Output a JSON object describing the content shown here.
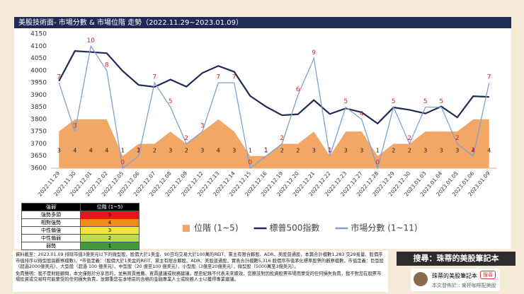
{
  "chart_data": {
    "type": "combo",
    "title": "美股技術面- 市場分數 & 市場位階 走勢（2022.11.29~2023.01.09）",
    "categories": [
      "2022.11.29",
      "2022.11.30",
      "2022.12.01",
      "2022.12.02",
      "2022.12.05",
      "2022.12.06",
      "2022.12.07",
      "2022.12.08",
      "2022.12.09",
      "2022.12.12",
      "2022.12.13",
      "2022.12.14",
      "2022.12.15",
      "2022.12.16",
      "2022.12.19",
      "2022.12.20",
      "2022.12.21",
      "2022.12.22",
      "2022.12.23",
      "2022.12.27",
      "2022.12.28",
      "2022.12.29",
      "2022.12.30",
      "2023.01.03",
      "2023.01.04",
      "2023.01.05",
      "2023.01.06",
      "2023.01.09"
    ],
    "series": [
      {
        "name": "位階 (1~5)",
        "type": "area",
        "axis": "y2",
        "color": "#f2a766",
        "label_color": "#222222",
        "values": [
          3,
          4,
          4,
          4,
          1,
          2,
          2,
          3,
          2,
          3,
          4,
          3,
          1,
          1,
          2,
          2,
          3,
          1,
          3,
          3,
          1,
          2,
          2,
          3,
          3,
          3,
          4,
          4
        ]
      },
      {
        "name": "標普500指數",
        "type": "line",
        "color": "#1f2a55",
        "values": [
          3957,
          4080,
          4076,
          4071,
          3998,
          3941,
          3933,
          3963,
          3934,
          3990,
          4019,
          3995,
          3896,
          3852,
          3817,
          3821,
          3879,
          3822,
          3845,
          3829,
          3783,
          3849,
          3839,
          3824,
          3853,
          3808,
          3895,
          3892
        ]
      },
      {
        "name": "市場分數 (1~11)",
        "type": "line",
        "axis": "y2",
        "color": "#7f9fd3",
        "label_color": "#e02020",
        "values": [
          7,
          3,
          10,
          8,
          0,
          1,
          7,
          5,
          2,
          3,
          7,
          7,
          0,
          1,
          2,
          6,
          9,
          1,
          5,
          4,
          0,
          5,
          2,
          5,
          5,
          2,
          1,
          7
        ]
      }
    ],
    "ylim": [
      3600,
      4150
    ],
    "yticks": [
      3600,
      3650,
      3700,
      3750,
      3800,
      3850,
      3900,
      3950,
      4000,
      4050,
      4100,
      4150
    ],
    "y2lim": [
      0,
      11
    ],
    "grid": false
  },
  "level_table": {
    "header": [
      "強弱",
      "位階 (1~5)"
    ],
    "rows": [
      [
        "強勢多頭",
        5,
        "#e8141a"
      ],
      [
        "相對強勢",
        4,
        "#f28a1c"
      ],
      [
        "中性偏強",
        3,
        "#f3e536"
      ],
      [
        "中性偏弱",
        2,
        "#b9dc5a"
      ],
      [
        "弱勢",
        1,
        "#3f9b3c"
      ]
    ]
  },
  "notes": [
    "資料截至：2023.01.09 排除市值3億美元以下的微型股、股價大於1美金、90日均交易大於100萬的REIT、黨主有限合夥股、ADR、美股普通股，本篇合計檔數1,283 交29易量、股價序市值排序以微型股與觀察檔數)。*市值定義：（股價大於1美金的REIT、黨主有限合夥股、ADR、美股普通股，實表合計檔數5,316 股價序市值茅化標準股票的觀察檔數，市值定義：巨型股（超過2000億美元）、大型股（超過 100 億美元）、中型股（20 億至100 億美元）、小型股（3億至20億美元），微型股（5000萬至3億美元）。",
    "免責聲明：我不是財經顧問，本文僅限於分享目的，並無買賣推薦、買賣建議或稅務建議，歷史紀錄不代表未來績效，您應該對因投資股票市場而蒙受的任何損失負責，我不對您在股票市場投資或交易時可能蒙受的任何損失負責，並鄭重您在本地區的合格的金融專業人士或稅務人士以獲得專業建議。"
  ],
  "sidebar": {
    "search": "搜尋：珠蒂的美股筆記本",
    "name": "珠蒂的美股筆記本",
    "button": "搜尋",
    "published": "本文發佈於 : 東杯咖啡配美股"
  }
}
